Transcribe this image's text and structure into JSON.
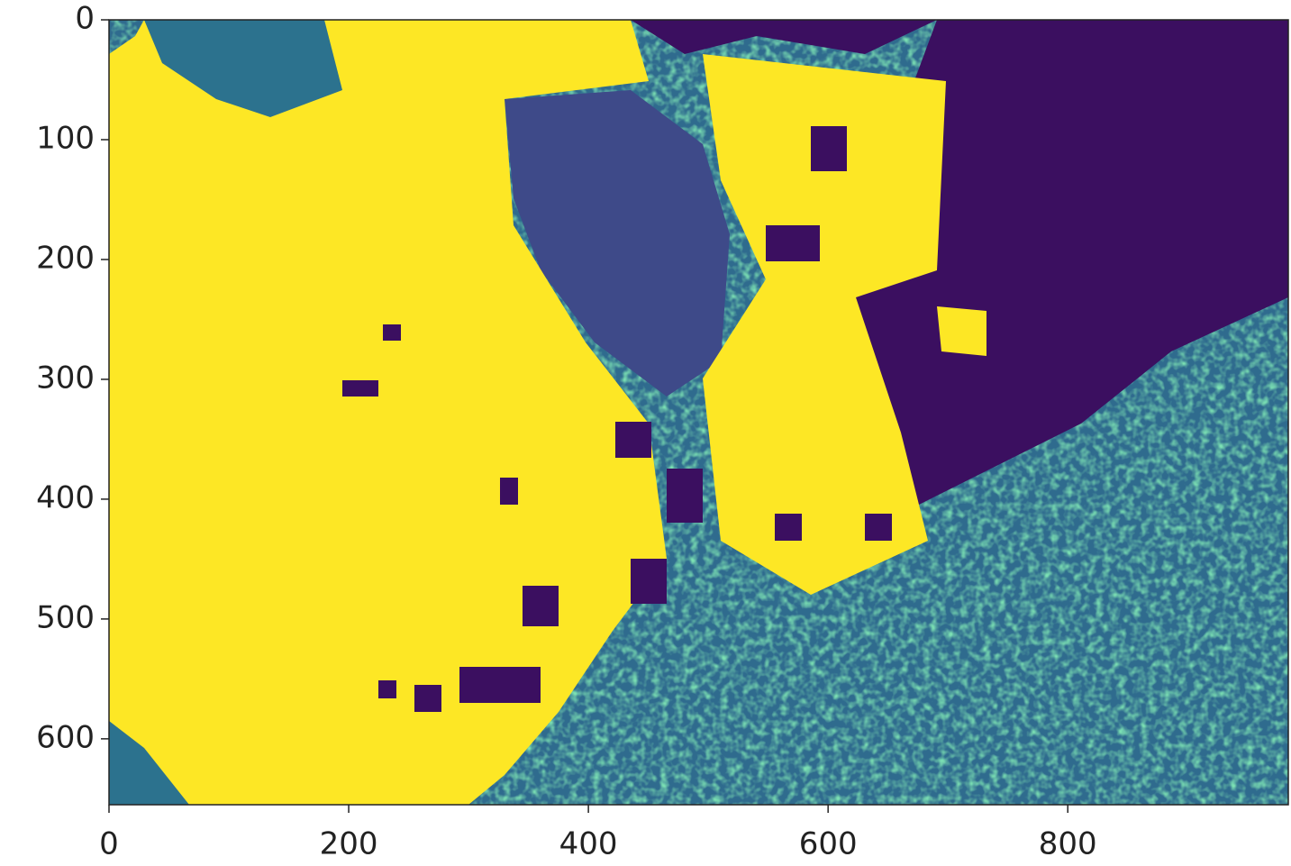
{
  "chart_data": {
    "type": "image",
    "xlim": [
      0,
      984
    ],
    "ylim": [
      655,
      0
    ],
    "xticks": [
      0,
      200,
      400,
      600,
      800
    ],
    "yticks": [
      0,
      100,
      200,
      300,
      400,
      500,
      600
    ]
  }
}
